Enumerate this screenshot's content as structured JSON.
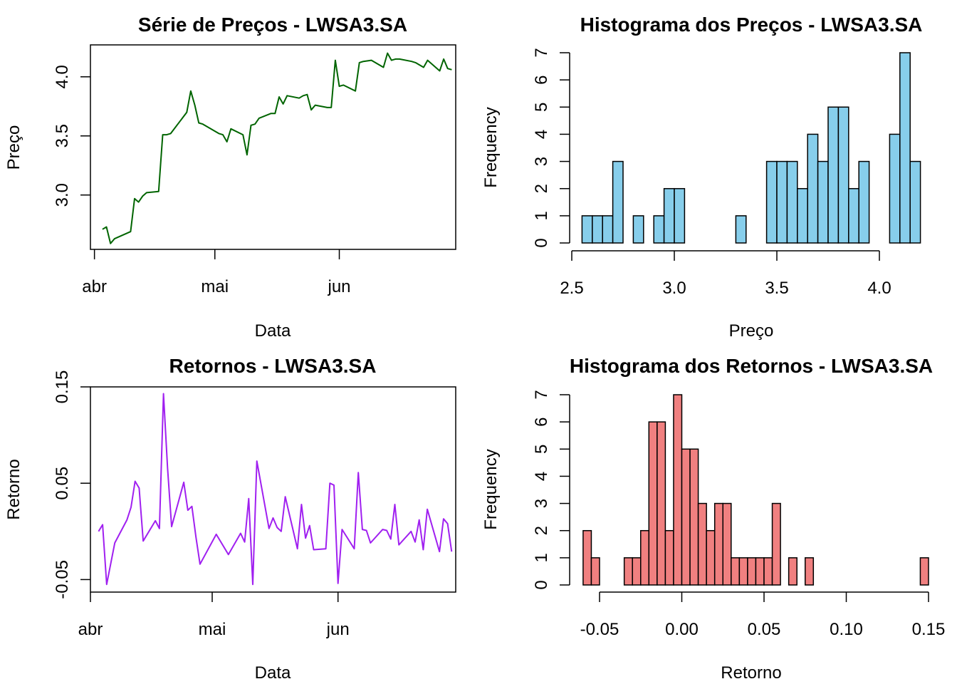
{
  "colors": {
    "price_line": "#006400",
    "returns_line": "#a020f0",
    "price_hist_fill": "#87ceeb",
    "returns_hist_fill": "#f08080"
  },
  "chart_data": [
    {
      "id": "price-series",
      "type": "line",
      "title": "Série de Preços - LWSA3.SA",
      "xlabel": "Data",
      "ylabel": "Preço",
      "x_ticks": [
        "abr",
        "mai",
        "jun"
      ],
      "y_ticks": [
        "3.0",
        "3.5",
        "4.0"
      ],
      "xlim": [
        "2023-03-31",
        "2023-06-30"
      ],
      "ylim": [
        2.54,
        4.27
      ],
      "series": [
        {
          "x": [
            "2023-04-03",
            "2023-04-04",
            "2023-04-05",
            "2023-04-06",
            "2023-04-10",
            "2023-04-11",
            "2023-04-12",
            "2023-04-13",
            "2023-04-14",
            "2023-04-17",
            "2023-04-18",
            "2023-04-19",
            "2023-04-20",
            "2023-04-24",
            "2023-04-25",
            "2023-04-26",
            "2023-04-27",
            "2023-04-28",
            "2023-05-02",
            "2023-05-03",
            "2023-05-04",
            "2023-05-05",
            "2023-05-08",
            "2023-05-09",
            "2023-05-10",
            "2023-05-11",
            "2023-05-12",
            "2023-05-15",
            "2023-05-16",
            "2023-05-17",
            "2023-05-18",
            "2023-05-19",
            "2023-05-22",
            "2023-05-23",
            "2023-05-24",
            "2023-05-25",
            "2023-05-26",
            "2023-05-29",
            "2023-05-30",
            "2023-05-31",
            "2023-06-01",
            "2023-06-02",
            "2023-06-05",
            "2023-06-06",
            "2023-06-07",
            "2023-06-09",
            "2023-06-12",
            "2023-06-13",
            "2023-06-14",
            "2023-06-15",
            "2023-06-16",
            "2023-06-19",
            "2023-06-20",
            "2023-06-21",
            "2023-06-22",
            "2023-06-23",
            "2023-06-26",
            "2023-06-27",
            "2023-06-28",
            "2023-06-29"
          ],
          "values": [
            2.71,
            2.73,
            2.59,
            2.63,
            2.69,
            2.97,
            2.94,
            2.99,
            3.02,
            3.03,
            3.51,
            3.51,
            3.52,
            3.7,
            3.88,
            3.76,
            3.61,
            3.6,
            3.52,
            3.51,
            3.45,
            3.56,
            3.51,
            3.34,
            3.59,
            3.6,
            3.65,
            3.69,
            3.69,
            3.83,
            3.77,
            3.84,
            3.82,
            3.84,
            3.85,
            3.72,
            3.76,
            3.74,
            3.74,
            4.14,
            3.92,
            3.93,
            3.88,
            4.12,
            4.13,
            4.14,
            4.08,
            4.2,
            4.14,
            4.15,
            4.15,
            4.13,
            4.12,
            4.1,
            4.08,
            4.14,
            4.05,
            4.15,
            4.07,
            4.06
          ]
        }
      ]
    },
    {
      "id": "price-histogram",
      "type": "bar",
      "title": "Histograma dos Preços - LWSA3.SA",
      "xlabel": "Preço",
      "ylabel": "Frequency",
      "x_ticks": [
        "2.5",
        "3.0",
        "3.5",
        "4.0"
      ],
      "y_ticks": [
        "0",
        "1",
        "2",
        "3",
        "4",
        "5",
        "6",
        "7"
      ],
      "bin_start": 2.55,
      "bin_width": 0.05,
      "counts": [
        1,
        1,
        1,
        3,
        0,
        1,
        0,
        1,
        2,
        2,
        0,
        0,
        0,
        0,
        0,
        1,
        0,
        0,
        3,
        3,
        3,
        2,
        4,
        3,
        5,
        5,
        2,
        3,
        0,
        0,
        4,
        7,
        3
      ],
      "xlim": [
        2.5,
        4.2
      ],
      "ylim": [
        0,
        7
      ]
    },
    {
      "id": "returns-series",
      "type": "line",
      "title": "Retornos - LWSA3.SA",
      "xlabel": "Data",
      "ylabel": "Retorno",
      "x_ticks": [
        "abr",
        "mai",
        "jun"
      ],
      "y_ticks": [
        "-0.05",
        "0.05",
        "0.15"
      ],
      "xlim": [
        "2023-04-01",
        "2023-06-30"
      ],
      "ylim": [
        -0.063,
        0.15
      ],
      "series": [
        {
          "x": [
            "2023-04-03",
            "2023-04-04",
            "2023-04-05",
            "2023-04-07",
            "2023-04-10",
            "2023-04-11",
            "2023-04-12",
            "2023-04-13",
            "2023-04-14",
            "2023-04-17",
            "2023-04-18",
            "2023-04-19",
            "2023-04-20",
            "2023-04-21",
            "2023-04-24",
            "2023-04-25",
            "2023-04-26",
            "2023-04-27",
            "2023-04-28",
            "2023-05-02",
            "2023-05-05",
            "2023-05-08",
            "2023-05-09",
            "2023-05-10",
            "2023-05-11",
            "2023-05-12",
            "2023-05-15",
            "2023-05-16",
            "2023-05-17",
            "2023-05-18",
            "2023-05-19",
            "2023-05-22",
            "2023-05-23",
            "2023-05-24",
            "2023-05-25",
            "2023-05-26",
            "2023-05-29",
            "2023-05-30",
            "2023-05-31",
            "2023-06-01",
            "2023-06-02",
            "2023-06-05",
            "2023-06-06",
            "2023-06-07",
            "2023-06-08",
            "2023-06-09",
            "2023-06-12",
            "2023-06-13",
            "2023-06-14",
            "2023-06-15",
            "2023-06-16",
            "2023-06-19",
            "2023-06-20",
            "2023-06-21",
            "2023-06-22",
            "2023-06-23",
            "2023-06-26",
            "2023-06-27",
            "2023-06-28",
            "2023-06-29"
          ],
          "values": [
            0.0,
            0.007,
            -0.055,
            -0.012,
            0.012,
            0.025,
            0.052,
            0.045,
            -0.01,
            0.011,
            0.003,
            0.143,
            0.066,
            0.005,
            0.051,
            0.022,
            0.026,
            -0.006,
            -0.034,
            -0.003,
            -0.024,
            -0.002,
            -0.011,
            0.034,
            -0.055,
            0.073,
            0.003,
            0.014,
            0.004,
            0.0,
            0.036,
            -0.018,
            0.028,
            -0.007,
            0.006,
            -0.019,
            -0.018,
            0.05,
            0.048,
            -0.054,
            0.002,
            -0.018,
            0.061,
            0.002,
            0.001,
            -0.012,
            0.002,
            0.001,
            -0.008,
            0.028,
            -0.014,
            0.0,
            -0.011,
            0.012,
            -0.019,
            0.023,
            -0.021,
            0.013,
            0.008,
            -0.021
          ]
        }
      ]
    },
    {
      "id": "returns-histogram",
      "type": "bar",
      "title": "Histograma dos Retornos - LWSA3.SA",
      "xlabel": "Retorno",
      "ylabel": "Frequency",
      "x_ticks": [
        "-0.05",
        "0.00",
        "0.05",
        "0.10",
        "0.15"
      ],
      "y_ticks": [
        "0",
        "1",
        "2",
        "3",
        "4",
        "5",
        "6",
        "7"
      ],
      "bin_start": -0.06,
      "bin_width": 0.005,
      "counts": [
        2,
        1,
        0,
        0,
        0,
        1,
        1,
        2,
        6,
        6,
        2,
        7,
        5,
        5,
        3,
        2,
        3,
        3,
        1,
        1,
        1,
        1,
        1,
        3,
        0,
        1,
        0,
        1,
        0,
        0,
        0,
        0,
        0,
        0,
        0,
        0,
        0,
        0,
        0,
        0,
        0,
        1
      ],
      "xlim": [
        -0.06,
        0.15
      ],
      "ylim": [
        0,
        7
      ]
    }
  ]
}
